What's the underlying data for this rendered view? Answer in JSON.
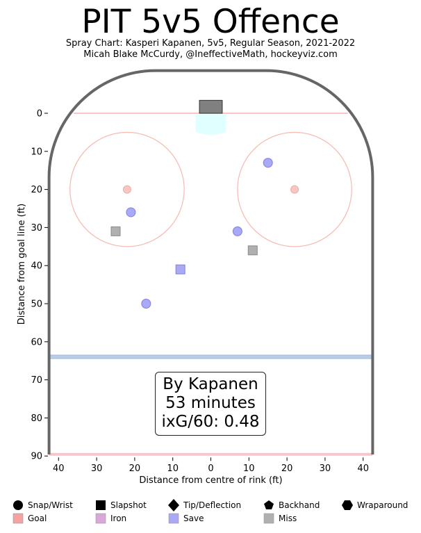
{
  "header": {
    "title": "PIT 5v5 Offence",
    "subtitle1": "Spray Chart: Kasperi Kapanen, 5v5, Regular Season, 2021-2022",
    "subtitle2": "Micah Blake McCurdy, @IneffectiveMath, hockeyviz.com"
  },
  "annotation": {
    "line1": "By Kapanen",
    "line2": "53 minutes",
    "line3": "ixG/60: 0.48"
  },
  "legend": {
    "shapes": [
      {
        "label": "Snap/Wrist",
        "icon": "circle-icon"
      },
      {
        "label": "Slapshot",
        "icon": "square-icon"
      },
      {
        "label": "Tip/Deflection",
        "icon": "diamond-icon"
      },
      {
        "label": "Backhand",
        "icon": "pentagon-icon"
      },
      {
        "label": "Wraparound",
        "icon": "hexagon-icon"
      }
    ],
    "outcomes": [
      {
        "label": "Goal",
        "color": "#f4a3a3"
      },
      {
        "label": "Iron",
        "color": "#d8a8d8"
      },
      {
        "label": "Save",
        "color": "#a9a9f5"
      },
      {
        "label": "Miss",
        "color": "#b0b0b0"
      }
    ]
  },
  "colors": {
    "goal": "#f4a3a3",
    "iron": "#d8a8d8",
    "save": "#a9a9f5",
    "miss": "#b0b0b0",
    "boards": "#666666",
    "goal_line": "#f6b0b0",
    "blue_line": "#b9cde6",
    "crease": "#e0ffff"
  },
  "chart_data": {
    "type": "scatter",
    "xlabel": "Distance from centre of rink (ft)",
    "ylabel": "Distance from goal line (ft)",
    "xlim": [
      -42.5,
      42.5
    ],
    "ylim": [
      90,
      -11
    ],
    "x_ticks": [
      -40,
      -30,
      -20,
      -10,
      0,
      10,
      20,
      30,
      40
    ],
    "x_tick_labels": [
      "40",
      "30",
      "20",
      "10",
      "0",
      "10",
      "20",
      "30",
      "40"
    ],
    "y_ticks": [
      0,
      10,
      20,
      30,
      40,
      50,
      60,
      70,
      80,
      90
    ],
    "y_tick_labels": [
      "0",
      "10",
      "20",
      "30",
      "40",
      "50",
      "60",
      "70",
      "80",
      "90"
    ],
    "points": [
      {
        "x": 15,
        "y": 13,
        "shot": "Snap/Wrist",
        "outcome": "Save"
      },
      {
        "x": -21,
        "y": 26,
        "shot": "Snap/Wrist",
        "outcome": "Save"
      },
      {
        "x": 7,
        "y": 31,
        "shot": "Snap/Wrist",
        "outcome": "Save"
      },
      {
        "x": -17,
        "y": 50,
        "shot": "Snap/Wrist",
        "outcome": "Save"
      },
      {
        "x": -25,
        "y": 31,
        "shot": "Slapshot",
        "outcome": "Miss"
      },
      {
        "x": 11,
        "y": 36,
        "shot": "Slapshot",
        "outcome": "Miss"
      },
      {
        "x": -8,
        "y": 41,
        "shot": "Slapshot",
        "outcome": "Save"
      }
    ],
    "grid": false,
    "legend_position": "bottom"
  }
}
